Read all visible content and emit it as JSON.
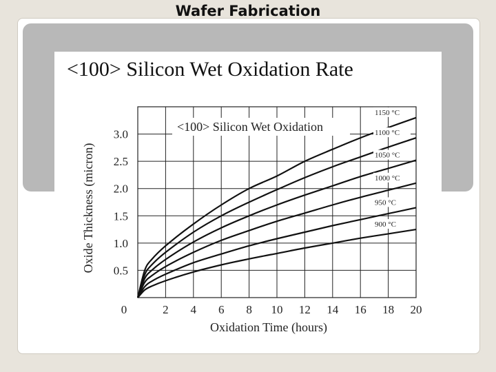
{
  "slide": {
    "title": "Wafer Fabrication"
  },
  "figure": {
    "title": "<100> Silicon Wet Oxidation Rate"
  },
  "chart_data": {
    "type": "line",
    "title": "<100> Silicon Wet Oxidation",
    "xlabel": "Oxidation Time (hours)",
    "ylabel": "Oxide Thickness (micron)",
    "xlim": [
      0,
      20
    ],
    "ylim": [
      0,
      3.5
    ],
    "xticks": [
      0,
      2,
      4,
      6,
      8,
      10,
      12,
      14,
      16,
      18,
      20
    ],
    "yticks": [
      0,
      0.5,
      1.0,
      1.5,
      2.0,
      2.5,
      3.0
    ],
    "ytick_labels": [
      "0",
      "0.5",
      "1.0",
      "1.5",
      "2.0",
      "2.5",
      "3.0"
    ],
    "grid": true,
    "legend": "labels at right end of each curve",
    "x": [
      0,
      0.5,
      1,
      2,
      4,
      6,
      8,
      10,
      12,
      14,
      16,
      18,
      20
    ],
    "series": [
      {
        "name": "1150 °C",
        "values": [
          0,
          0.5,
          0.7,
          0.95,
          1.35,
          1.7,
          2.0,
          2.23,
          2.5,
          2.72,
          2.93,
          3.12,
          3.3
        ]
      },
      {
        "name": "1100 °C",
        "values": [
          0,
          0.42,
          0.6,
          0.83,
          1.2,
          1.5,
          1.75,
          1.98,
          2.2,
          2.4,
          2.58,
          2.76,
          2.93
        ]
      },
      {
        "name": "1050 °C",
        "values": [
          0,
          0.35,
          0.5,
          0.7,
          1.02,
          1.28,
          1.5,
          1.7,
          1.88,
          2.05,
          2.22,
          2.37,
          2.52
        ]
      },
      {
        "name": "1000 °C",
        "values": [
          0,
          0.28,
          0.4,
          0.57,
          0.83,
          1.05,
          1.23,
          1.4,
          1.55,
          1.7,
          1.84,
          1.97,
          2.1
        ]
      },
      {
        "name": "950 °C",
        "values": [
          0,
          0.2,
          0.3,
          0.43,
          0.64,
          0.8,
          0.95,
          1.08,
          1.2,
          1.32,
          1.43,
          1.54,
          1.65
        ]
      },
      {
        "name": "900 °C",
        "values": [
          0,
          0.14,
          0.21,
          0.31,
          0.47,
          0.6,
          0.71,
          0.81,
          0.91,
          1.0,
          1.09,
          1.17,
          1.25
        ]
      }
    ],
    "colors": {
      "lines": "#111111",
      "grid": "#222222"
    }
  }
}
